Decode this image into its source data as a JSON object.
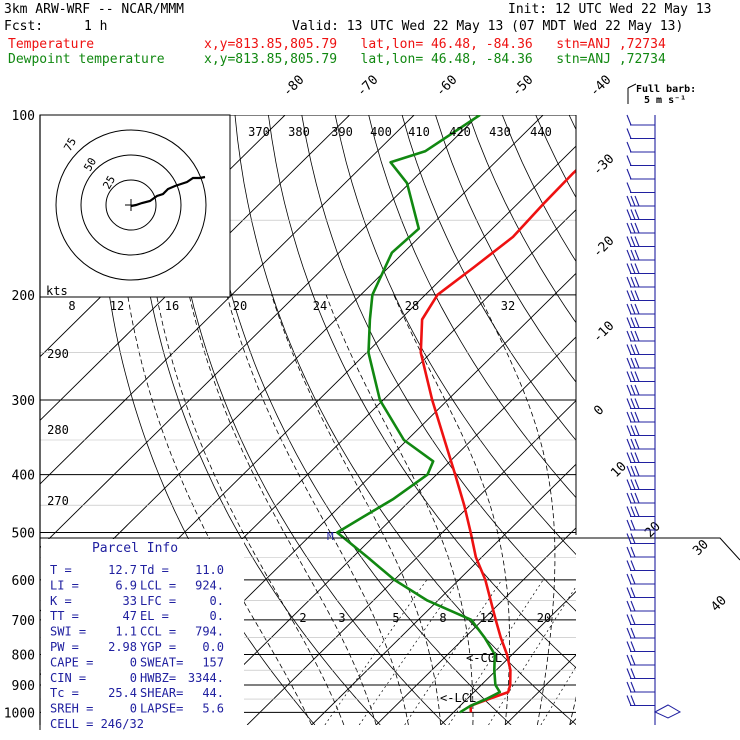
{
  "header": {
    "title": "3km ARW-WRF -- NCAR/MMM",
    "init": "Init: 12 UTC Wed 22 May 13",
    "fcst_label": "Fcst:",
    "fcst_value": "1 h",
    "valid": "Valid: 13 UTC Wed 22 May 13 (07 MDT Wed 22 May 13)",
    "temp_label": "Temperature",
    "temp_info": "x,y=813.85,805.79   lat,lon= 46.48, -84.36   stn=ANJ ,72734",
    "dew_label": "Dewpoint temperature",
    "dew_info": "x,y=813.85,805.79   lat,lon= 46.48, -84.36   stn=ANJ ,72734",
    "full_barb": "Full barb:",
    "full_barb_unit": "5 m s⁻¹"
  },
  "colors": {
    "temperature": "#ee1111",
    "dewpoint": "#118811",
    "barb": "#2020a0",
    "axes": "#000000"
  },
  "chart_data": {
    "type": "line",
    "title": "3km ARW-WRF -- NCAR/MMM",
    "xlabel": "",
    "ylabel": "",
    "pressure_ticks": [
      100,
      200,
      300,
      400,
      500,
      600,
      700,
      800,
      900,
      1000
    ],
    "isotherm_labels": [
      -80,
      -70,
      -60,
      -50,
      -40,
      -30,
      -20,
      -10,
      0,
      10,
      20,
      30,
      40
    ],
    "theta_labels": [
      370,
      380,
      390,
      400,
      410,
      420,
      430,
      440
    ],
    "theta_side_labels": [
      290,
      280,
      270
    ],
    "mixing_ratio_labels": [
      8,
      12,
      16,
      20,
      24,
      28,
      32
    ],
    "mixing_ratio_low_labels": [
      2,
      3,
      5,
      8,
      12,
      20
    ],
    "series": [
      {
        "name": "Temperature",
        "points": [
          [
            1000,
            12.7
          ],
          [
            975,
            11.6
          ],
          [
            950,
            13.4
          ],
          [
            925,
            15.3
          ],
          [
            900,
            14.5
          ],
          [
            850,
            12.2
          ],
          [
            800,
            9.2
          ],
          [
            750,
            5.6
          ],
          [
            700,
            2.0
          ],
          [
            650,
            -1.8
          ],
          [
            600,
            -5.9
          ],
          [
            550,
            -10.9
          ],
          [
            500,
            -15.6
          ],
          [
            450,
            -20.9
          ],
          [
            400,
            -27.1
          ],
          [
            350,
            -34.2
          ],
          [
            300,
            -42.4
          ],
          [
            250,
            -51.6
          ],
          [
            220,
            -56.6
          ],
          [
            200,
            -58.1
          ],
          [
            180,
            -56.8
          ],
          [
            160,
            -55.5
          ],
          [
            140,
            -56.0
          ],
          [
            125,
            -56.2
          ],
          [
            115,
            -56.0
          ],
          [
            100,
            -56.5
          ]
        ]
      },
      {
        "name": "Dewpoint temperature",
        "points": [
          [
            1000,
            11.0
          ],
          [
            975,
            11.6
          ],
          [
            950,
            13.0
          ],
          [
            925,
            14.0
          ],
          [
            900,
            12.2
          ],
          [
            850,
            9.7
          ],
          [
            800,
            7.3
          ],
          [
            750,
            3.1
          ],
          [
            700,
            -1.8
          ],
          [
            650,
            -11.6
          ],
          [
            600,
            -20.0
          ],
          [
            550,
            -27.7
          ],
          [
            500,
            -36.3
          ],
          [
            470,
            -34.7
          ],
          [
            440,
            -32.9
          ],
          [
            400,
            -31.4
          ],
          [
            380,
            -32.6
          ],
          [
            350,
            -40.5
          ],
          [
            300,
            -50.5
          ],
          [
            250,
            -59.7
          ],
          [
            220,
            -64.7
          ],
          [
            200,
            -68.2
          ],
          [
            170,
            -71.8
          ],
          [
            155,
            -71.4
          ],
          [
            130,
            -80.4
          ],
          [
            120,
            -86.2
          ],
          [
            115,
            -82.6
          ],
          [
            100,
            -79.8
          ]
        ]
      }
    ],
    "annotations": [
      "LCL",
      "CCL",
      "M"
    ],
    "hodograph": {
      "rings_kts": [
        25,
        50,
        75
      ],
      "label": "kts"
    },
    "parcel_info": {
      "title": "Parcel Info",
      "rows": [
        [
          "T  =",
          "12.7",
          "Td =",
          "11.0"
        ],
        [
          "LI =",
          "6.9",
          "LCL =",
          "924."
        ],
        [
          "K  =",
          "33",
          "LFC =",
          "0."
        ],
        [
          "TT =",
          "47",
          "EL  =",
          "0."
        ],
        [
          "SWI =",
          "1.1",
          "CCL =",
          "794."
        ],
        [
          "PW =",
          "2.98",
          "YGP =",
          "0.0"
        ],
        [
          "CAPE =",
          "0",
          "SWEAT=",
          "157"
        ],
        [
          "CIN =",
          "0",
          "HWBZ=",
          "3344."
        ],
        [
          "Tc =",
          "25.4",
          "SHEAR=",
          "44."
        ],
        [
          "SREH =",
          "0",
          "LAPSE=",
          "5.6"
        ]
      ],
      "cell": "CELL = 246/32"
    }
  }
}
